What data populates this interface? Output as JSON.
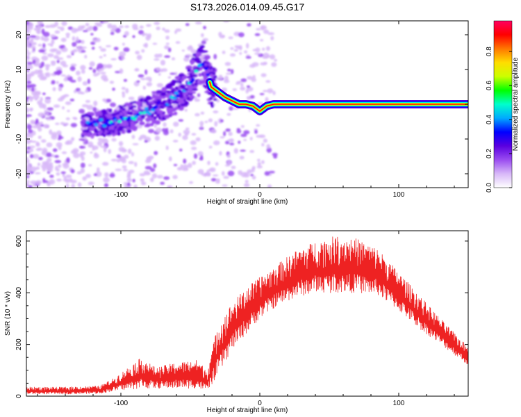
{
  "title": "S173.2026.014.09.45.G17",
  "chart_data": [
    {
      "type": "heatmap",
      "xlabel": "Height of straight line (km)",
      "ylabel": "Frequency (Hz)",
      "xlim": [
        -168,
        150
      ],
      "ylim": [
        -24,
        24
      ],
      "xticks": [
        -100,
        0,
        100
      ],
      "yticks": [
        -20,
        -10,
        0,
        10,
        20
      ],
      "colorbar": {
        "label": "Normalized spectral amplitude",
        "range": [
          0,
          0.98
        ],
        "ticks": [
          0.0,
          0.2,
          0.4,
          0.6,
          0.8
        ],
        "colors": [
          "#ffffff",
          "#d8b8f8",
          "#9a4cf0",
          "#5a00e0",
          "#0000ff",
          "#00aaff",
          "#00ffcc",
          "#00ff00",
          "#ccff00",
          "#ffdd00",
          "#ff7700",
          "#ff0000",
          "#ff0060"
        ]
      },
      "ridge": [
        {
          "x": -125,
          "f": -6.0
        },
        {
          "x": -115,
          "f": -5.5
        },
        {
          "x": -105,
          "f": -5.0
        },
        {
          "x": -95,
          "f": -4.0
        },
        {
          "x": -85,
          "f": -2.5
        },
        {
          "x": -75,
          "f": -1.0
        },
        {
          "x": -65,
          "f": 1.0
        },
        {
          "x": -55,
          "f": 4.0
        },
        {
          "x": -48,
          "f": 7.5
        },
        {
          "x": -42,
          "f": 12.0
        },
        {
          "x": -38,
          "f": 9.0
        },
        {
          "x": -35,
          "f": 5.0
        },
        {
          "x": -30,
          "f": 3.5
        },
        {
          "x": -25,
          "f": 2.0
        },
        {
          "x": -20,
          "f": 1.0
        },
        {
          "x": -15,
          "f": 0.0
        },
        {
          "x": -10,
          "f": 0.0
        },
        {
          "x": -5,
          "f": -0.5
        },
        {
          "x": 0,
          "f": -2.0
        },
        {
          "x": 5,
          "f": -0.5
        },
        {
          "x": 10,
          "f": 0.0
        },
        {
          "x": 50,
          "f": 0.0
        },
        {
          "x": 100,
          "f": 0.0
        },
        {
          "x": 150,
          "f": 0.0
        }
      ]
    },
    {
      "type": "line",
      "xlabel": "Height of straight line (km)",
      "ylabel": "SNR (10 * v/v)",
      "xlim": [
        -168,
        150
      ],
      "ylim": [
        0,
        640
      ],
      "xticks": [
        -100,
        0,
        100
      ],
      "yticks": [
        0,
        200,
        400,
        600
      ],
      "color": "#ee2222",
      "envelope": [
        {
          "x": -168,
          "lo": 8,
          "hi": 35
        },
        {
          "x": -140,
          "lo": 8,
          "hi": 35
        },
        {
          "x": -115,
          "lo": 10,
          "hi": 40
        },
        {
          "x": -105,
          "lo": 20,
          "hi": 70
        },
        {
          "x": -95,
          "lo": 25,
          "hi": 110
        },
        {
          "x": -85,
          "lo": 30,
          "hi": 150
        },
        {
          "x": -75,
          "lo": 30,
          "hi": 110
        },
        {
          "x": -60,
          "lo": 30,
          "hi": 130
        },
        {
          "x": -45,
          "lo": 30,
          "hi": 140
        },
        {
          "x": -38,
          "lo": 20,
          "hi": 100
        },
        {
          "x": -30,
          "lo": 80,
          "hi": 280
        },
        {
          "x": -20,
          "lo": 180,
          "hi": 360
        },
        {
          "x": -10,
          "lo": 240,
          "hi": 420
        },
        {
          "x": 0,
          "lo": 300,
          "hi": 460
        },
        {
          "x": 10,
          "lo": 340,
          "hi": 500
        },
        {
          "x": 25,
          "lo": 380,
          "hi": 560
        },
        {
          "x": 40,
          "lo": 400,
          "hi": 600
        },
        {
          "x": 55,
          "lo": 400,
          "hi": 620
        },
        {
          "x": 70,
          "lo": 400,
          "hi": 610
        },
        {
          "x": 85,
          "lo": 390,
          "hi": 570
        },
        {
          "x": 100,
          "lo": 330,
          "hi": 480
        },
        {
          "x": 115,
          "lo": 260,
          "hi": 390
        },
        {
          "x": 130,
          "lo": 200,
          "hi": 300
        },
        {
          "x": 150,
          "lo": 120,
          "hi": 190
        }
      ]
    }
  ]
}
